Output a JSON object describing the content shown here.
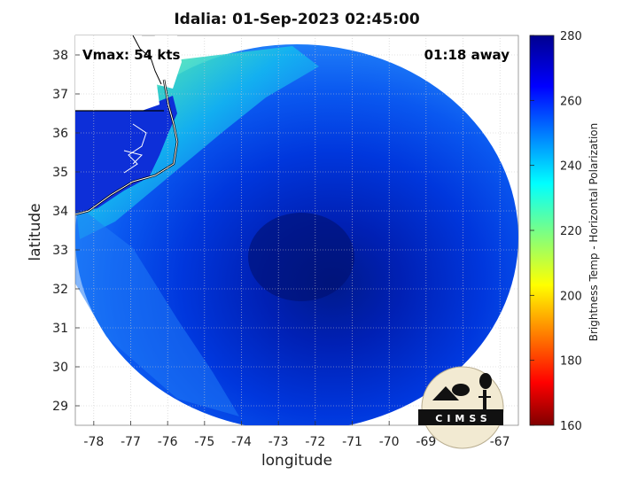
{
  "chart_data": {
    "type": "heatmap",
    "title": "Idalia: 01-Sep-2023 02:45:00",
    "xlabel": "longitude",
    "ylabel": "latitude",
    "xlim": [
      -78.5,
      -66.5
    ],
    "ylim": [
      28.5,
      38.5
    ],
    "x_ticks": [
      -78,
      -77,
      -76,
      -75,
      -74,
      -73,
      -72,
      -71,
      -70,
      -69,
      -68,
      -67
    ],
    "y_ticks": [
      29,
      30,
      31,
      32,
      33,
      34,
      35,
      36,
      37,
      38
    ],
    "grid": true,
    "annotations": {
      "vmax": "Vmax: 54 kts",
      "away": "01:18 away"
    },
    "colorbar": {
      "label": "Brightness Temp - Horizontal Polarization",
      "range": [
        160,
        280
      ],
      "ticks": [
        160,
        180,
        200,
        220,
        240,
        260,
        280
      ],
      "colormap": "jet"
    },
    "swath": {
      "center_lon": -72.5,
      "center_lat": 33.0,
      "approx_value_range": [
        215,
        280
      ]
    }
  },
  "logo": {
    "text": "CIMSS"
  }
}
